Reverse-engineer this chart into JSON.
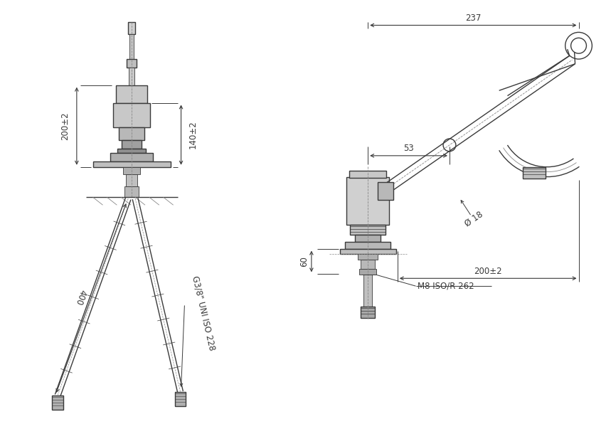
{
  "bg_color": "#ffffff",
  "line_color": "#3a3a3a",
  "dim_color": "#3a3a3a",
  "fig_width": 8.53,
  "fig_height": 6.27,
  "dims_left": {
    "200_2_label": "200±2",
    "140_2_label": "140±2",
    "400_label": "400",
    "G38_label": "G3/8\" UNI ISO 228"
  },
  "dims_right": {
    "237_label": "237",
    "53_label": "53",
    "18_label": "Ø 18",
    "200_2_label": "200±2",
    "60_label": "60",
    "M8_label": "M8 ISO/R 262"
  },
  "font_size_dim": 8.5
}
